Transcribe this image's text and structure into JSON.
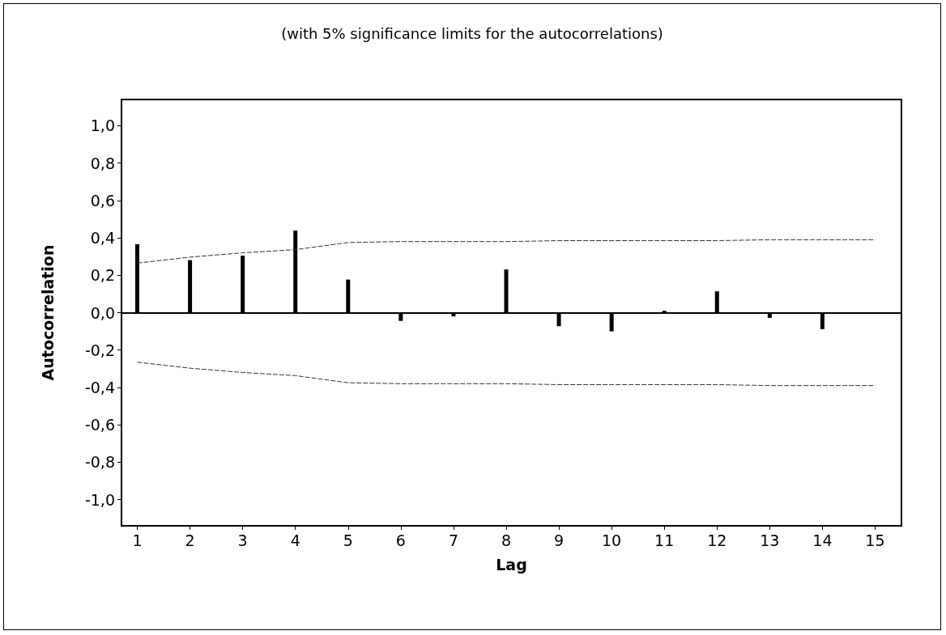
{
  "chart_data": {
    "type": "bar",
    "title": "(with 5% significance limits for the autocorrelations)",
    "xlabel": "Lag",
    "ylabel": "Autocorrelation",
    "x": [
      1,
      2,
      3,
      4,
      5,
      6,
      7,
      8,
      9,
      10,
      11,
      12,
      13,
      14,
      15
    ],
    "series": [
      {
        "color": "#000000",
        "values": [
          0.366,
          0.281,
          0.305,
          0.439,
          0.177,
          -0.044,
          -0.02,
          0.231,
          -0.072,
          -0.1,
          0.01,
          0.114,
          -0.028,
          -0.088,
          null
        ]
      },
      {
        "type": "line",
        "color": "#333333",
        "line_style": "dashed",
        "marker": "none",
        "values": [
          0.265,
          0.297,
          0.32,
          0.337,
          0.375,
          0.38,
          0.38,
          0.38,
          0.385,
          0.385,
          0.385,
          0.385,
          0.39,
          0.39,
          0.39
        ]
      },
      {
        "type": "line",
        "color": "#333333",
        "line_style": "dashed",
        "marker": "none",
        "values": [
          -0.265,
          -0.297,
          -0.32,
          -0.337,
          -0.375,
          -0.38,
          -0.38,
          -0.38,
          -0.385,
          -0.385,
          -0.385,
          -0.385,
          -0.39,
          -0.39,
          -0.39
        ]
      }
    ],
    "xlim": [
      0.7,
      15.5
    ],
    "xticks": [
      1,
      2,
      3,
      4,
      5,
      6,
      7,
      8,
      9,
      10,
      11,
      12,
      13,
      14,
      15
    ],
    "ylim": [
      -1.14,
      1.14
    ],
    "yticks": [
      {
        "value": -1.0,
        "label": "-1,0"
      },
      {
        "value": -0.8,
        "label": "-0,8"
      },
      {
        "value": -0.6,
        "label": "-0,6"
      },
      {
        "value": -0.4,
        "label": "-0,4"
      },
      {
        "value": -0.2,
        "label": "-0,2"
      },
      {
        "value": 0,
        "label": "0,0"
      },
      {
        "value": 0.2,
        "label": "0,2"
      },
      {
        "value": 0.4,
        "label": "0,4"
      },
      {
        "value": 0.6,
        "label": "0,6"
      },
      {
        "value": 0.8,
        "label": "0,8"
      },
      {
        "value": 1.0,
        "label": "1,0"
      }
    ],
    "ref_lines": [
      {
        "axis": "y",
        "value": 0,
        "color": "#000000",
        "line_style": "solid"
      }
    ],
    "grid": false
  }
}
